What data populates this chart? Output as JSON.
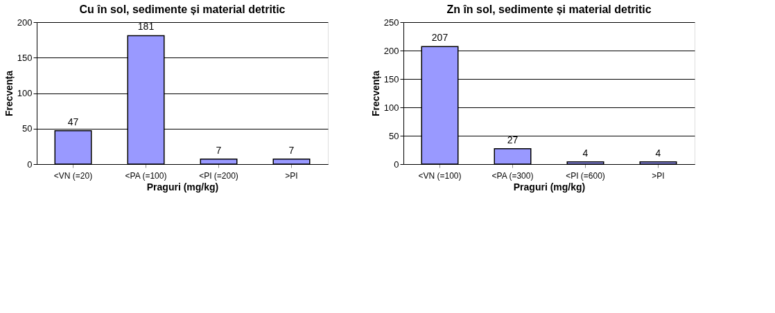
{
  "chart_data": [
    {
      "type": "bar",
      "title": "Cu în sol, sedimente și material detritic",
      "xlabel": "Praguri (mg/kg)",
      "ylabel": "Frecvența",
      "categories": [
        "<VN (=20)",
        "<PA (=100)",
        "<PI (=200)",
        ">PI"
      ],
      "series": [
        {
          "color": "#9999ff",
          "values": [
            47,
            181,
            7,
            7
          ]
        }
      ],
      "ylim": [
        0,
        200
      ],
      "yticks": [
        0,
        50,
        100,
        150,
        200
      ],
      "grid": "y",
      "data_labels": true,
      "legend": false
    },
    {
      "type": "bar",
      "title": "Zn în sol, sedimente și material detritic",
      "xlabel": "Praguri (mg/kg)",
      "ylabel": "Frecvența",
      "categories": [
        "<VN (=100)",
        "<PA (=300)",
        "<PI (=600)",
        ">PI"
      ],
      "series": [
        {
          "color": "#9999ff",
          "values": [
            207,
            27,
            4,
            4
          ]
        }
      ],
      "ylim": [
        0,
        250
      ],
      "yticks": [
        0,
        50,
        100,
        150,
        200,
        250
      ],
      "grid": "y",
      "data_labels": true,
      "legend": false
    }
  ]
}
